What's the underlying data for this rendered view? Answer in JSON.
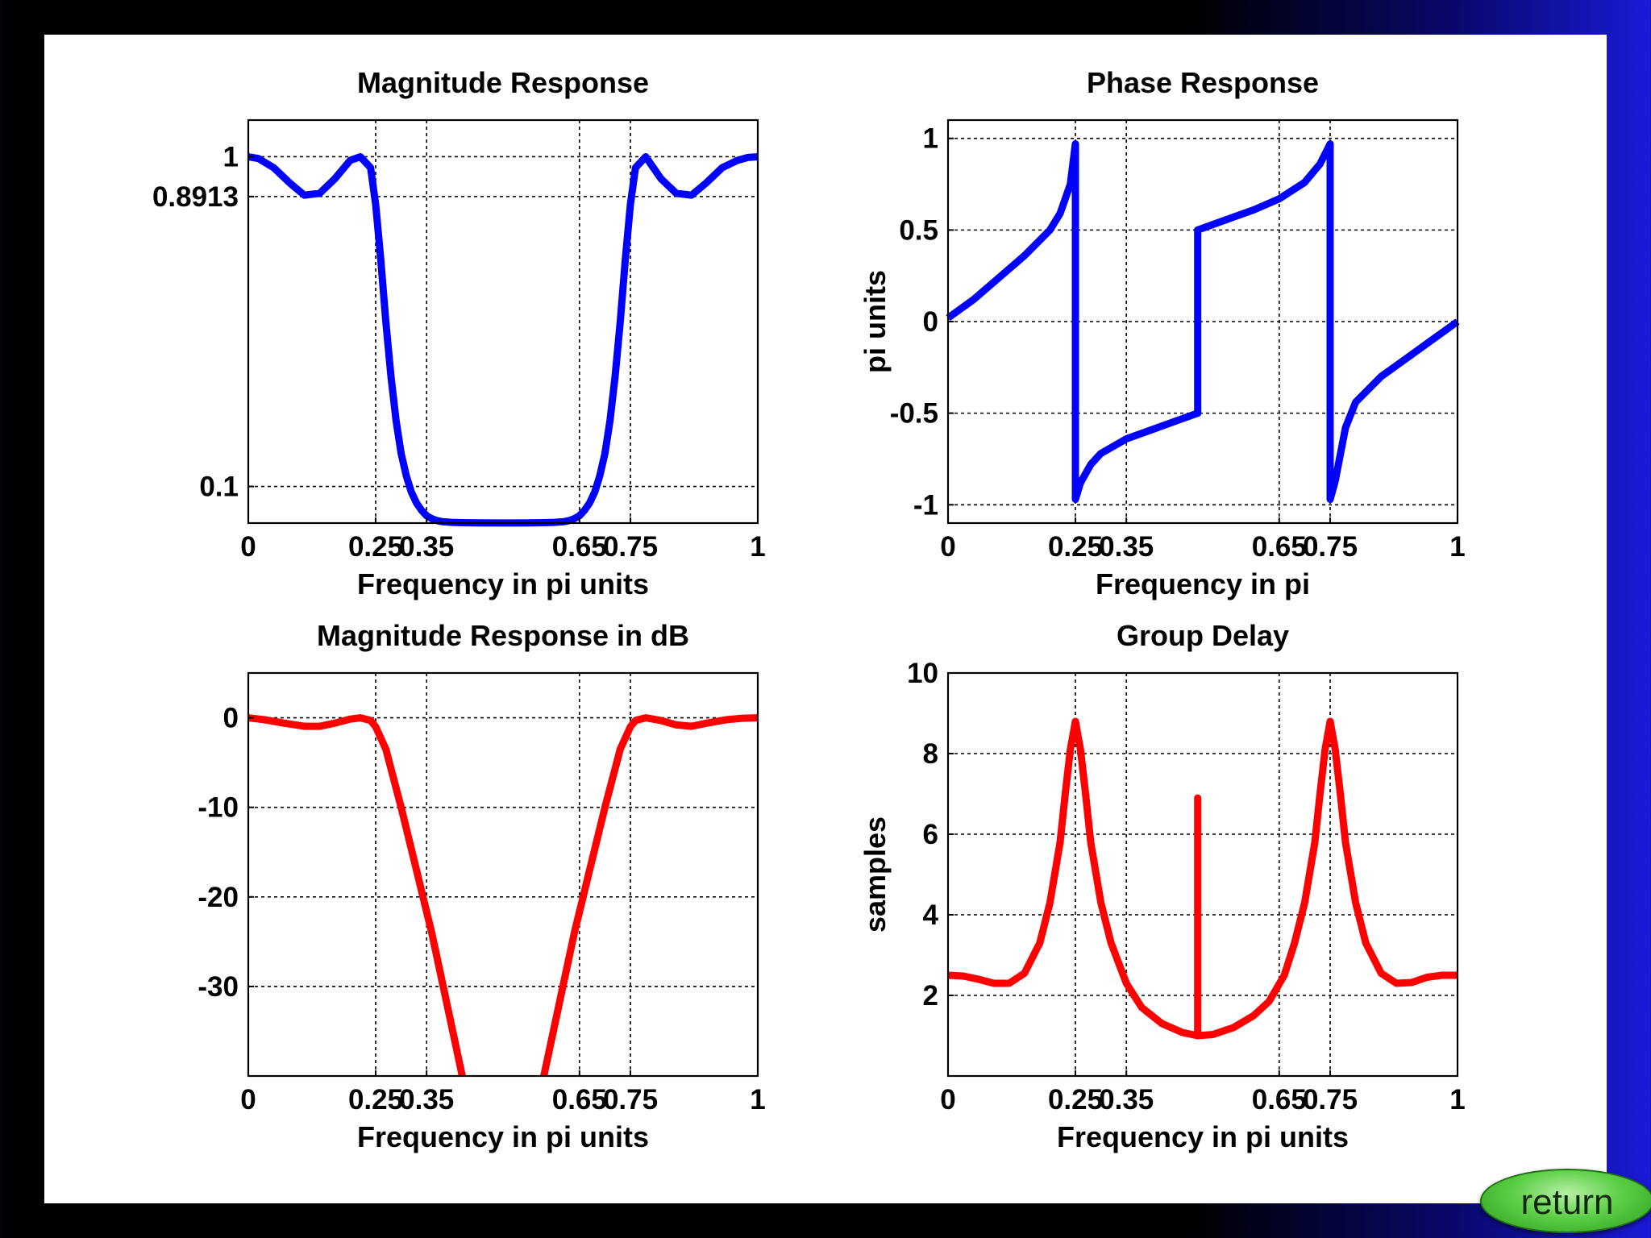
{
  "colors": {
    "blue_series": "#0000ff",
    "red_series": "#ff0000",
    "grid": "#000000"
  },
  "return_button": {
    "label": "return"
  },
  "chart_data": [
    {
      "type": "line",
      "title": "Magnitude Response",
      "xlabel": "Frequency in pi units",
      "ylabel": "",
      "xlim": [
        0,
        1
      ],
      "ylim": [
        0,
        1.1
      ],
      "xticks": [
        0,
        0.25,
        0.35,
        0.65,
        0.75,
        1
      ],
      "xtick_labels": [
        "0",
        "0.25",
        "0.35",
        "0.65",
        "0.75",
        "1"
      ],
      "yticks": [
        0.1,
        0.8913,
        1
      ],
      "ytick_labels": [
        "0.1",
        "0.8913",
        "1"
      ],
      "grid": true,
      "color": "blue",
      "series": [
        {
          "x": [
            0,
            0.02,
            0.05,
            0.08,
            0.11,
            0.14,
            0.17,
            0.2,
            0.22,
            0.24,
            0.25,
            0.26,
            0.27,
            0.28,
            0.29,
            0.3,
            0.31,
            0.32,
            0.33,
            0.34,
            0.35,
            0.36,
            0.37,
            0.38,
            0.4,
            0.42,
            0.45,
            0.5,
            0.55,
            0.58,
            0.6,
            0.62,
            0.63,
            0.64,
            0.65,
            0.66,
            0.67,
            0.68,
            0.69,
            0.7,
            0.71,
            0.72,
            0.73,
            0.74,
            0.75,
            0.76,
            0.78,
            0.81,
            0.84,
            0.87,
            0.9,
            0.93,
            0.96,
            0.98,
            1.0
          ],
          "y": [
            1.0,
            0.995,
            0.97,
            0.93,
            0.895,
            0.9,
            0.94,
            0.99,
            1.0,
            0.97,
            0.87,
            0.72,
            0.55,
            0.4,
            0.28,
            0.19,
            0.13,
            0.085,
            0.055,
            0.035,
            0.02,
            0.012,
            0.007,
            0.004,
            0.002,
            0.001,
            0.0005,
            0.0003,
            0.0005,
            0.001,
            0.002,
            0.004,
            0.007,
            0.012,
            0.02,
            0.035,
            0.055,
            0.085,
            0.13,
            0.19,
            0.28,
            0.4,
            0.55,
            0.72,
            0.87,
            0.97,
            1.0,
            0.94,
            0.9,
            0.895,
            0.93,
            0.97,
            0.99,
            0.998,
            1.0
          ]
        }
      ]
    },
    {
      "type": "line",
      "title": "Phase Response",
      "xlabel": "Frequency in pi",
      "ylabel": "pi units",
      "xlim": [
        0,
        1
      ],
      "ylim": [
        -1.1,
        1.1
      ],
      "xticks": [
        0,
        0.25,
        0.35,
        0.65,
        0.75,
        1
      ],
      "xtick_labels": [
        "0",
        "0.25",
        "0.35",
        "0.65",
        "0.75",
        "1"
      ],
      "yticks": [
        -1,
        -0.5,
        0,
        0.5,
        1
      ],
      "ytick_labels": [
        "-1",
        "-0.5",
        "0",
        "0.5",
        "1"
      ],
      "grid": true,
      "color": "blue",
      "series": [
        {
          "x": [
            0,
            0.05,
            0.1,
            0.15,
            0.2,
            0.22,
            0.24,
            0.25,
            0.25,
            0.26,
            0.28,
            0.3,
            0.35,
            0.4,
            0.45,
            0.49,
            0.49,
            0.52,
            0.55,
            0.6,
            0.65,
            0.7,
            0.73,
            0.75,
            0.75,
            0.76,
            0.78,
            0.8,
            0.85,
            0.9,
            0.95,
            1.0
          ],
          "y": [
            0.02,
            0.12,
            0.24,
            0.36,
            0.5,
            0.59,
            0.75,
            0.97,
            -0.97,
            -0.88,
            -0.78,
            -0.72,
            -0.64,
            -0.59,
            -0.54,
            -0.5,
            0.5,
            0.53,
            0.56,
            0.61,
            0.67,
            0.76,
            0.86,
            0.97,
            -0.97,
            -0.87,
            -0.58,
            -0.44,
            -0.3,
            -0.2,
            -0.1,
            0.0
          ]
        }
      ]
    },
    {
      "type": "line",
      "title": "Magnitude Response in dB",
      "xlabel": "Frequency in pi units",
      "ylabel": "",
      "xlim": [
        0,
        1
      ],
      "ylim": [
        -40,
        5
      ],
      "xticks": [
        0,
        0.25,
        0.35,
        0.65,
        0.75,
        1
      ],
      "xtick_labels": [
        "0",
        "0.25",
        "0.35",
        "0.65",
        "0.75",
        "1"
      ],
      "yticks": [
        -30,
        -20,
        -10,
        0
      ],
      "ytick_labels": [
        "-30",
        "-20",
        "-10",
        "0"
      ],
      "grid": true,
      "color": "red",
      "series": [
        {
          "x": [
            0,
            0.03,
            0.07,
            0.11,
            0.14,
            0.17,
            0.2,
            0.22,
            0.24,
            0.25,
            0.27,
            0.3,
            0.33,
            0.36,
            0.39,
            0.42
          ],
          "y": [
            0,
            -0.2,
            -0.6,
            -0.95,
            -0.95,
            -0.6,
            -0.15,
            0,
            -0.3,
            -1.0,
            -3.5,
            -10,
            -17,
            -24,
            -32,
            -40
          ]
        },
        {
          "x": [
            0.58,
            0.61,
            0.64,
            0.67,
            0.7,
            0.73,
            0.75,
            0.76,
            0.78,
            0.81,
            0.84,
            0.87,
            0.9,
            0.94,
            0.97,
            1.0
          ],
          "y": [
            -40,
            -32,
            -24,
            -17,
            -10,
            -3.5,
            -1.0,
            -0.3,
            0,
            -0.3,
            -0.8,
            -0.95,
            -0.6,
            -0.2,
            -0.05,
            0
          ]
        }
      ]
    },
    {
      "type": "line",
      "title": "Group Delay",
      "xlabel": "Frequency in pi units",
      "ylabel": "samples",
      "xlim": [
        0,
        1
      ],
      "ylim": [
        0,
        10
      ],
      "xticks": [
        0,
        0.25,
        0.35,
        0.65,
        0.75,
        1
      ],
      "xtick_labels": [
        "0",
        "0.25",
        "0.35",
        "0.65",
        "0.75",
        "1"
      ],
      "yticks": [
        2,
        4,
        6,
        8,
        10
      ],
      "ytick_labels": [
        "2",
        "4",
        "6",
        "8",
        "10"
      ],
      "grid": true,
      "color": "red",
      "series": [
        {
          "x": [
            0,
            0.03,
            0.06,
            0.09,
            0.12,
            0.15,
            0.18,
            0.2,
            0.22,
            0.23,
            0.24,
            0.25,
            0.26,
            0.27,
            0.28,
            0.3,
            0.32,
            0.35,
            0.38,
            0.42,
            0.46,
            0.49,
            0.49,
            0.49,
            0.52,
            0.56,
            0.6,
            0.63,
            0.66,
            0.68,
            0.7,
            0.72,
            0.73,
            0.74,
            0.75,
            0.76,
            0.77,
            0.78,
            0.8,
            0.82,
            0.85,
            0.88,
            0.91,
            0.94,
            0.97,
            1.0
          ],
          "y": [
            2.5,
            2.48,
            2.4,
            2.3,
            2.3,
            2.55,
            3.3,
            4.3,
            5.8,
            7.0,
            8.1,
            8.8,
            8.1,
            7.0,
            5.8,
            4.3,
            3.3,
            2.3,
            1.7,
            1.3,
            1.08,
            1.0,
            6.9,
            1.0,
            1.03,
            1.2,
            1.5,
            1.85,
            2.5,
            3.3,
            4.3,
            5.8,
            7.0,
            8.1,
            8.8,
            8.1,
            7.0,
            5.8,
            4.3,
            3.3,
            2.55,
            2.3,
            2.32,
            2.45,
            2.5,
            2.5
          ]
        }
      ]
    }
  ]
}
